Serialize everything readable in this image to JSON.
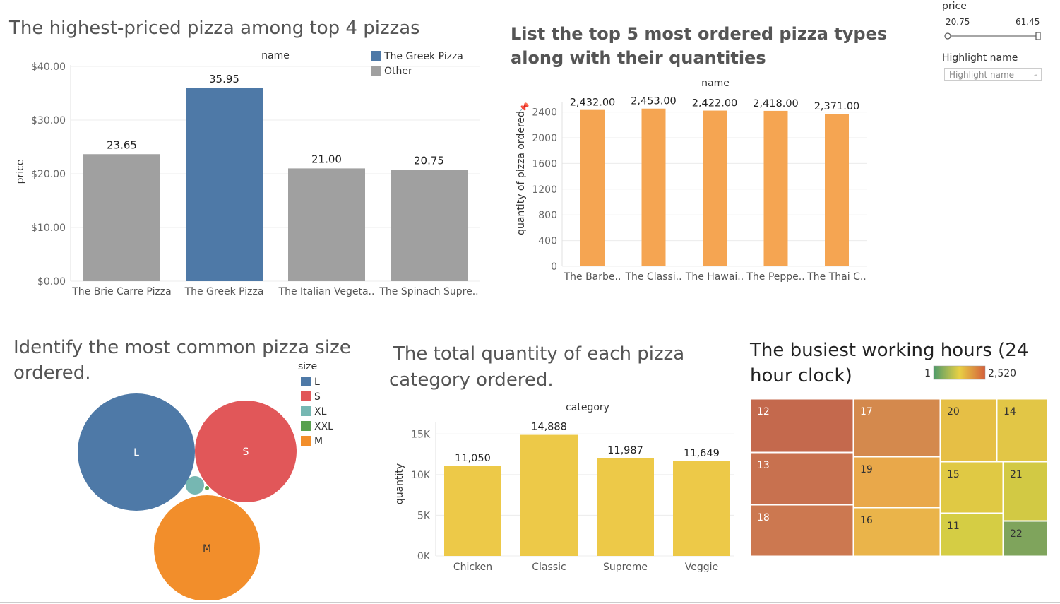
{
  "titles": {
    "chart1": "The highest-priced pizza among top 4 pizzas",
    "chart2_line1": "List the top 5 most ordered pizza types",
    "chart2_line2": "along with their quantities",
    "chart3_line1": "Identify the most common pizza size",
    "chart3_line2": "ordered.",
    "chart4_line1": "The total quantity of each pizza",
    "chart4_line2": "category ordered.",
    "chart5_line1": "The busiest working hours (24",
    "chart5_line2": "hour clock)"
  },
  "filters": {
    "price_label": "price",
    "price_min": "20.75",
    "price_max": "61.45",
    "highlight_label": "Highlight name",
    "highlight_placeholder": "Highlight name"
  },
  "colors": {
    "blue": "#4e79a7",
    "gray": "#a0a0a0",
    "orange": "#f5a552",
    "yellow": "#edc948",
    "red": "#e15759",
    "teal": "#76b7b2",
    "green": "#59a14f",
    "orange2": "#f28e2b"
  },
  "chart_data": [
    {
      "type": "bar",
      "title": "The highest-priced pizza among top 4 pizzas",
      "xlabel": "name",
      "ylabel": "price",
      "categories": [
        "The Brie Carre Pizza",
        "The Greek Pizza",
        "The Italian Vegeta..",
        "The Spinach Supre.."
      ],
      "values": [
        23.65,
        35.95,
        21.0,
        20.75
      ],
      "value_labels": [
        "23.65",
        "35.95",
        "21.00",
        "20.75"
      ],
      "highlight": [
        false,
        true,
        false,
        false
      ],
      "y_ticks": [
        "$0.00",
        "$10.00",
        "$20.00",
        "$30.00",
        "$40.00"
      ],
      "ylim": [
        0,
        40
      ],
      "legend": [
        "The Greek Pizza",
        "Other"
      ],
      "legend_position": "top-right"
    },
    {
      "type": "bar",
      "xlabel": "name",
      "ylabel": "quantity of pizza ordered",
      "categories": [
        "The Barbe..",
        "The Classi..",
        "The Hawai..",
        "The Peppe..",
        "The Thai C.."
      ],
      "values": [
        2432,
        2453,
        2422,
        2418,
        2371
      ],
      "value_labels": [
        "2,432.00",
        "2,453.00",
        "2,422.00",
        "2,418.00",
        "2,371.00"
      ],
      "y_ticks": [
        "0",
        "400",
        "800",
        "1200",
        "1600",
        "2000",
        "2400"
      ],
      "ylim": [
        0,
        2560
      ]
    },
    {
      "type": "bubble",
      "legend_title": "size",
      "legend": [
        "L",
        "S",
        "XL",
        "XXL",
        "M"
      ],
      "labels": [
        "L",
        "S",
        "M"
      ],
      "legend_position": "top-right"
    },
    {
      "type": "bar",
      "xlabel": "category",
      "ylabel": "quantity",
      "categories": [
        "Chicken",
        "Classic",
        "Supreme",
        "Veggie"
      ],
      "values": [
        11050,
        14888,
        11987,
        11649
      ],
      "value_labels": [
        "11,050",
        "14,888",
        "11,987",
        "11,649"
      ],
      "y_ticks": [
        "0K",
        "5K",
        "10K",
        "15K"
      ],
      "ylim": [
        0,
        16500
      ]
    },
    {
      "type": "treemap",
      "color_legend_min": "1",
      "color_legend_max": "2,520",
      "labels": [
        "12",
        "13",
        "18",
        "17",
        "19",
        "16",
        "20",
        "14",
        "15",
        "21",
        "11",
        "22"
      ]
    }
  ]
}
